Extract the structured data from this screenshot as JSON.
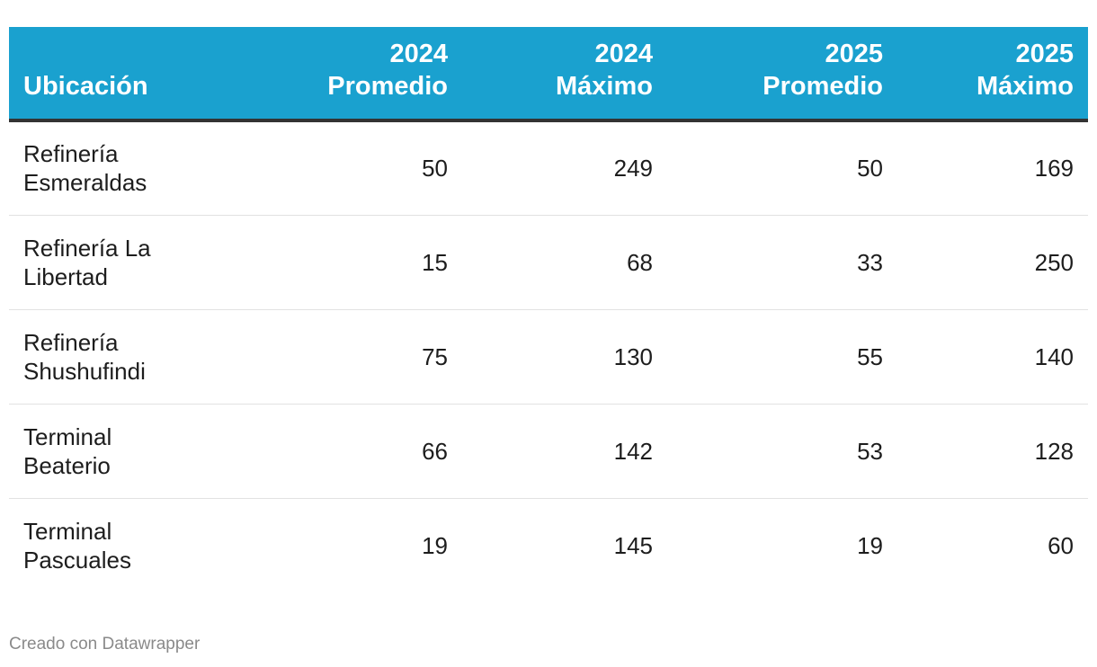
{
  "chart_data": {
    "type": "table",
    "columns": [
      {
        "line1": "",
        "line2": "Ubicación"
      },
      {
        "line1": "2024",
        "line2": "Promedio"
      },
      {
        "line1": "2024",
        "line2": "Máximo"
      },
      {
        "line1": "2025",
        "line2": "Promedio"
      },
      {
        "line1": "2025",
        "line2": "Máximo"
      }
    ],
    "rows": [
      {
        "name_line1": "Refinería",
        "name_line2": "Esmeraldas",
        "values": [
          "50",
          "249",
          "50",
          "169"
        ]
      },
      {
        "name_line1": "Refinería La",
        "name_line2": "Libertad",
        "values": [
          "15",
          "68",
          "33",
          "250"
        ]
      },
      {
        "name_line1": "Refinería",
        "name_line2": "Shushufindi",
        "values": [
          "75",
          "130",
          "55",
          "140"
        ]
      },
      {
        "name_line1": "Terminal",
        "name_line2": "Beaterio",
        "values": [
          "66",
          "142",
          "53",
          "128"
        ]
      },
      {
        "name_line1": "Terminal",
        "name_line2": "Pascuales",
        "values": [
          "19",
          "145",
          "19",
          "60"
        ]
      }
    ],
    "header_color": "#1aa1cf"
  },
  "footer": {
    "credit": "Creado con Datawrapper"
  }
}
